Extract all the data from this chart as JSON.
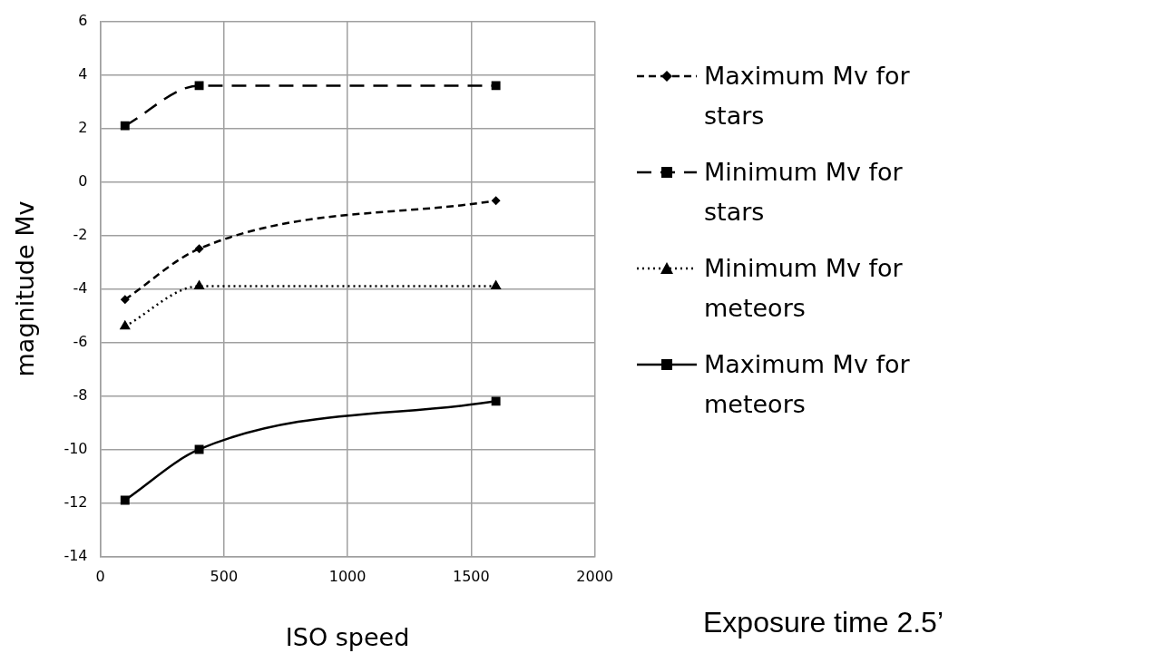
{
  "chart_data": {
    "type": "line",
    "xlabel": "ISO speed",
    "ylabel": "magnitude Mv",
    "annotations": [
      "Exposure time 2.5’"
    ],
    "xlim": [
      0,
      2000
    ],
    "xticks": [
      0,
      500,
      1000,
      1500,
      2000
    ],
    "ylim": [
      -14,
      6
    ],
    "yticks": [
      -14,
      -12,
      -10,
      -8,
      -6,
      -4,
      -2,
      0,
      2,
      4,
      6
    ],
    "grid": true,
    "legend": "right",
    "series": [
      {
        "name": "Maximum Mv for stars",
        "color": "#000000",
        "x": [
          100,
          400,
          1600
        ],
        "values": [
          -4.4,
          -2.5,
          -0.7
        ],
        "marker": "diamond",
        "line_style": "dashed"
      },
      {
        "name": "Minimum Mv for stars",
        "color": "#000000",
        "x": [
          100,
          400,
          1600
        ],
        "values": [
          2.1,
          3.6,
          3.6
        ],
        "marker": "square",
        "line_style": "dashed"
      },
      {
        "name": "Minimum Mv for meteors",
        "color": "#000000",
        "x": [
          100,
          400,
          1600
        ],
        "values": [
          -5.4,
          -3.9,
          -3.9
        ],
        "marker": "triangle",
        "line_style": "dotted"
      },
      {
        "name": "Maximum Mv for meteors",
        "color": "#000000",
        "x": [
          100,
          400,
          1600
        ],
        "values": [
          -11.9,
          -10.0,
          -8.2
        ],
        "marker": "square",
        "line_style": "solid"
      }
    ]
  }
}
